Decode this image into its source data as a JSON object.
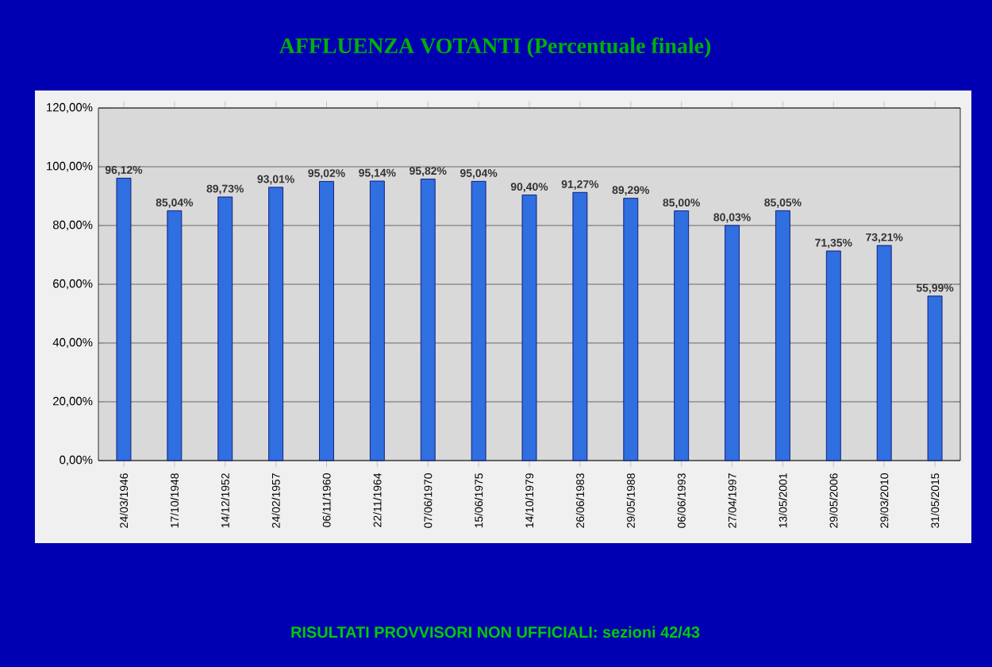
{
  "chart_data": {
    "type": "bar",
    "title": "AFFLUENZA VOTANTI (Percentuale finale)",
    "annotations": [
      "RISULTATI PROVVISORI NON UFFICIALI:  sezioni 42/43"
    ],
    "categories": [
      "24/03/1946",
      "17/10/1948",
      "14/12/1952",
      "24/02/1957",
      "06/11/1960",
      "22/11/1964",
      "07/06/1970",
      "15/06/1975",
      "14/10/1979",
      "26/06/1983",
      "29/05/1988",
      "06/06/1993",
      "27/04/1997",
      "13/05/2001",
      "29/05/2006",
      "29/03/2010",
      "31/05/2015"
    ],
    "values": [
      96.12,
      85.04,
      89.73,
      93.01,
      95.02,
      95.14,
      95.82,
      95.04,
      90.4,
      91.27,
      89.29,
      85.0,
      80.03,
      85.05,
      71.35,
      73.21,
      55.99
    ],
    "value_labels": [
      "96,12%",
      "85,04%",
      "89,73%",
      "93,01%",
      "95,02%",
      "95,14%",
      "95,82%",
      "95,04%",
      "90,40%",
      "91,27%",
      "89,29%",
      "85,00%",
      "80,03%",
      "85,05%",
      "71,35%",
      "73,21%",
      "55,99%"
    ],
    "color": "#2f6fe0",
    "ylim": [
      0,
      120
    ],
    "yticks": [
      {
        "value": 0,
        "label": "0,00%"
      },
      {
        "value": 20,
        "label": "20,00%"
      },
      {
        "value": 40,
        "label": "40,00%"
      },
      {
        "value": 60,
        "label": "60,00%"
      },
      {
        "value": 80,
        "label": "80,00%"
      },
      {
        "value": 100,
        "label": "100,00%"
      },
      {
        "value": 120,
        "label": "120,00%"
      }
    ],
    "grid": "y"
  }
}
